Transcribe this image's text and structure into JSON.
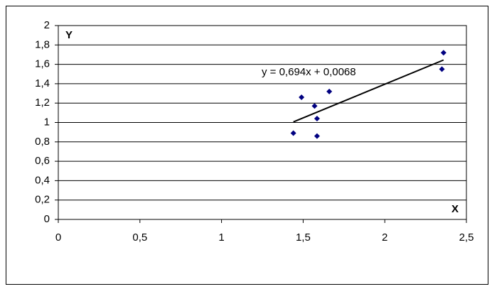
{
  "chart_data": {
    "type": "scatter",
    "x_label": "X",
    "y_label": "Y",
    "x": [
      1.44,
      1.49,
      1.57,
      1.585,
      1.585,
      1.66,
      2.36,
      2.35
    ],
    "values": [
      0.89,
      1.26,
      1.17,
      1.04,
      0.86,
      1.32,
      1.72,
      1.55
    ],
    "color": "#000080",
    "trendline": {
      "label": "y = 0,694x + 0,0068",
      "slope": 0.694,
      "intercept": 0.0068,
      "color": "#000000"
    },
    "xlim": [
      0,
      2.5
    ],
    "xticks": [
      0,
      {
        "value": 0.5,
        "label": "0,5"
      },
      1,
      {
        "value": 1.5,
        "label": "1,5"
      },
      2,
      {
        "value": 2.5,
        "label": "2,5"
      }
    ],
    "ylim": [
      0,
      2
    ],
    "yticks": [
      0,
      {
        "value": 0.2,
        "label": "0,2"
      },
      {
        "value": 0.4,
        "label": "0,4"
      },
      {
        "value": 0.6,
        "label": "0,6"
      },
      {
        "value": 0.8,
        "label": "0,8"
      },
      1,
      {
        "value": 1.2,
        "label": "1,2"
      },
      {
        "value": 1.4,
        "label": "1,4"
      },
      {
        "value": 1.6,
        "label": "1,6"
      },
      {
        "value": 1.8,
        "label": "1,8"
      },
      2
    ],
    "grid": true
  }
}
